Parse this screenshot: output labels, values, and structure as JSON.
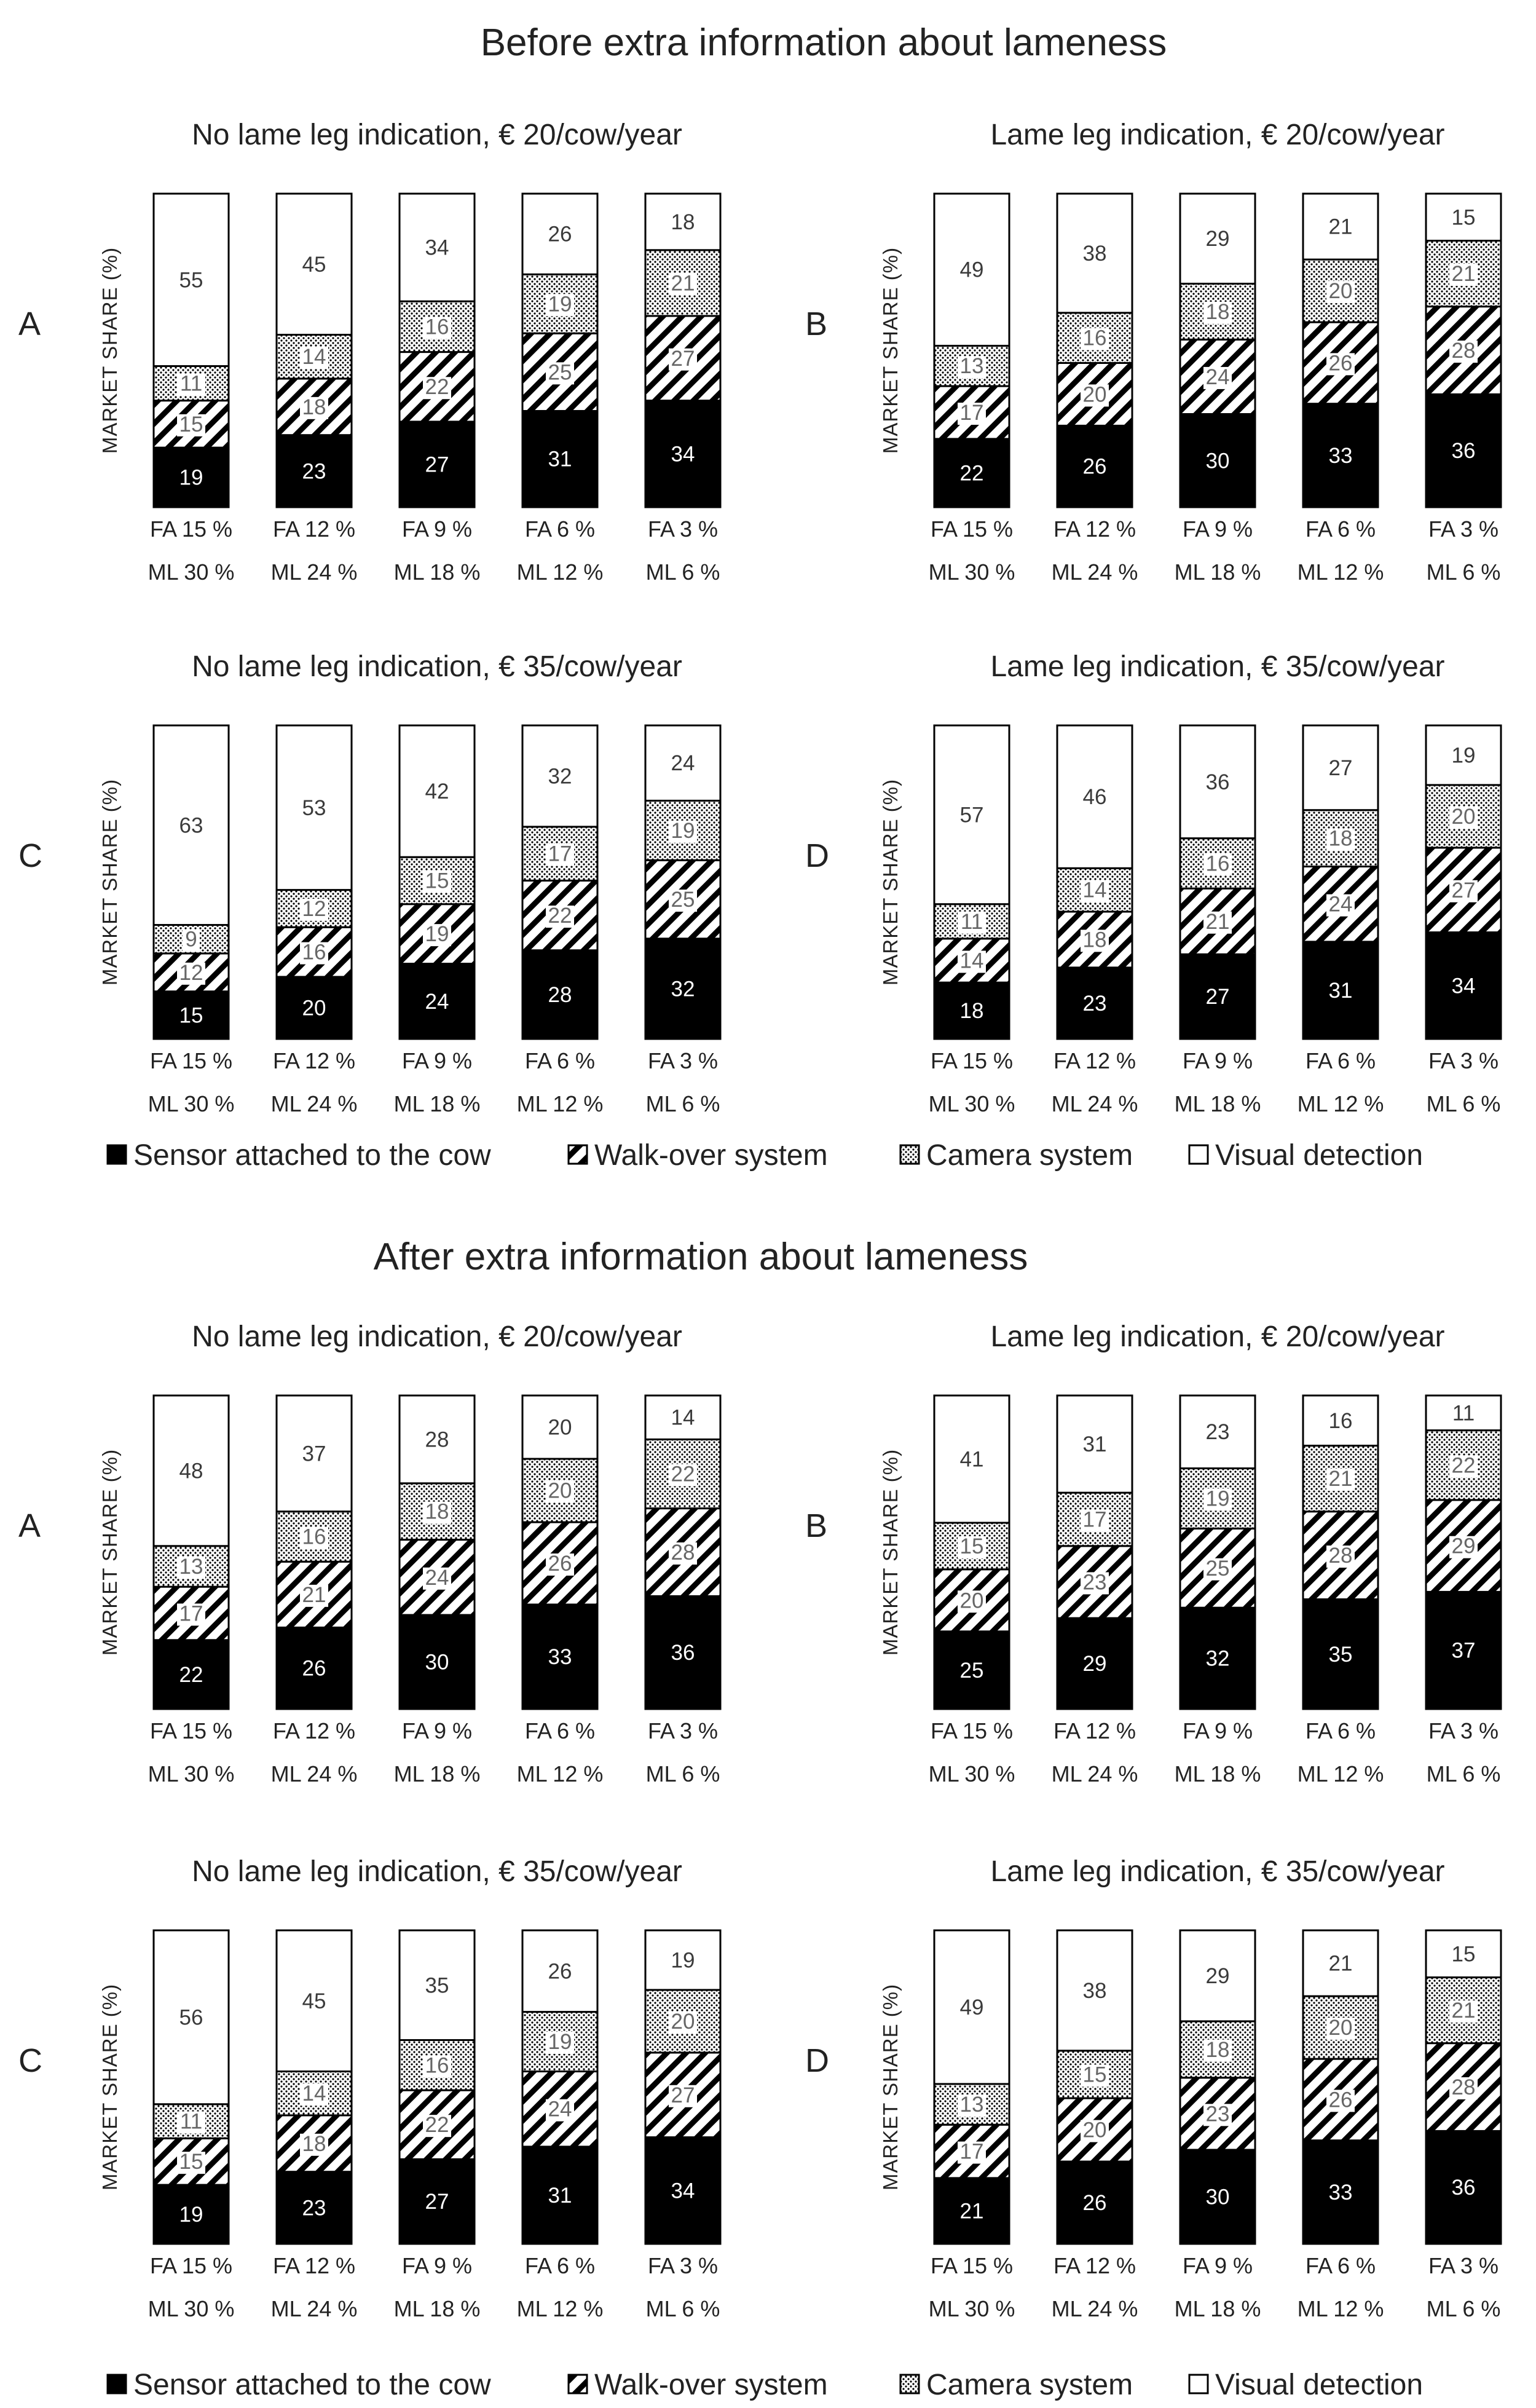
{
  "figure": {
    "section_before_title": "Before extra information about lameness",
    "section_after_title": "After extra information about lameness",
    "legend": [
      {
        "label": "Sensor attached to the cow",
        "pattern": "solid"
      },
      {
        "label": "Walk-over system",
        "pattern": "hatch"
      },
      {
        "label": "Camera system",
        "pattern": "dots"
      },
      {
        "label": "Visual detection",
        "pattern": "white"
      }
    ],
    "colors": {
      "sensor": "#000000",
      "stroke": "#000000",
      "background": "#ffffff"
    }
  },
  "chart_data": [
    {
      "type": "bar",
      "stacked": true,
      "section": "before",
      "panel": "A",
      "title": "No lame leg indication, € 20/cow/year",
      "ylabel": "MARKET SHARE (%)",
      "categories_fa": [
        "FA 15 %",
        "FA 12 %",
        "FA 9 %",
        "FA 6 %",
        "FA 3 %"
      ],
      "categories_ml": [
        "ML 30 %",
        "ML 24 %",
        "ML 18 %",
        "ML 12 %",
        "ML 6 %"
      ],
      "ylim": [
        0,
        100
      ],
      "series": [
        {
          "name": "Sensor attached to the cow",
          "values": [
            19,
            23,
            27,
            31,
            34
          ]
        },
        {
          "name": "Walk-over system",
          "values": [
            15,
            18,
            22,
            25,
            27
          ]
        },
        {
          "name": "Camera system",
          "values": [
            11,
            14,
            16,
            19,
            21
          ]
        },
        {
          "name": "Visual detection",
          "values": [
            55,
            45,
            34,
            26,
            18
          ]
        }
      ]
    },
    {
      "type": "bar",
      "stacked": true,
      "section": "before",
      "panel": "B",
      "title": "Lame leg indication, € 20/cow/year",
      "ylabel": "MARKET SHARE (%)",
      "categories_fa": [
        "FA 15 %",
        "FA 12 %",
        "FA 9 %",
        "FA 6 %",
        "FA 3 %"
      ],
      "categories_ml": [
        "ML 30 %",
        "ML 24 %",
        "ML 18 %",
        "ML 12 %",
        "ML 6 %"
      ],
      "ylim": [
        0,
        100
      ],
      "series": [
        {
          "name": "Sensor attached to the cow",
          "values": [
            22,
            26,
            30,
            33,
            36
          ]
        },
        {
          "name": "Walk-over system",
          "values": [
            17,
            20,
            24,
            26,
            28
          ]
        },
        {
          "name": "Camera system",
          "values": [
            13,
            16,
            18,
            20,
            21
          ]
        },
        {
          "name": "Visual detection",
          "values": [
            49,
            38,
            29,
            21,
            15
          ]
        }
      ]
    },
    {
      "type": "bar",
      "stacked": true,
      "section": "before",
      "panel": "C",
      "title": "No lame leg indication, € 35/cow/year",
      "ylabel": "MARKET SHARE (%)",
      "categories_fa": [
        "FA 15 %",
        "FA 12 %",
        "FA 9 %",
        "FA 6 %",
        "FA 3 %"
      ],
      "categories_ml": [
        "ML 30 %",
        "ML 24 %",
        "ML 18 %",
        "ML 12 %",
        "ML 6 %"
      ],
      "ylim": [
        0,
        100
      ],
      "series": [
        {
          "name": "Sensor attached to the cow",
          "values": [
            15,
            20,
            24,
            28,
            32
          ]
        },
        {
          "name": "Walk-over system",
          "values": [
            12,
            16,
            19,
            22,
            25
          ]
        },
        {
          "name": "Camera system",
          "values": [
            9,
            12,
            15,
            17,
            19
          ]
        },
        {
          "name": "Visual detection",
          "values": [
            63,
            53,
            42,
            32,
            24
          ]
        }
      ]
    },
    {
      "type": "bar",
      "stacked": true,
      "section": "before",
      "panel": "D",
      "title": "Lame leg indication, € 35/cow/year",
      "ylabel": "MARKET SHARE (%)",
      "categories_fa": [
        "FA 15 %",
        "FA 12 %",
        "FA 9 %",
        "FA 6 %",
        "FA 3 %"
      ],
      "categories_ml": [
        "ML 30 %",
        "ML 24 %",
        "ML 18 %",
        "ML 12 %",
        "ML 6 %"
      ],
      "ylim": [
        0,
        100
      ],
      "series": [
        {
          "name": "Sensor attached to the cow",
          "values": [
            18,
            23,
            27,
            31,
            34
          ]
        },
        {
          "name": "Walk-over system",
          "values": [
            14,
            18,
            21,
            24,
            27
          ]
        },
        {
          "name": "Camera system",
          "values": [
            11,
            14,
            16,
            18,
            20
          ]
        },
        {
          "name": "Visual detection",
          "values": [
            57,
            46,
            36,
            27,
            19
          ]
        }
      ]
    },
    {
      "type": "bar",
      "stacked": true,
      "section": "after",
      "panel": "A",
      "title": "No lame leg indication, € 20/cow/year",
      "ylabel": "MARKET SHARE (%)",
      "categories_fa": [
        "FA 15 %",
        "FA 12 %",
        "FA 9 %",
        "FA 6 %",
        "FA 3 %"
      ],
      "categories_ml": [
        "ML 30 %",
        "ML 24 %",
        "ML 18 %",
        "ML 12 %",
        "ML 6 %"
      ],
      "ylim": [
        0,
        100
      ],
      "series": [
        {
          "name": "Sensor attached to the cow",
          "values": [
            22,
            26,
            30,
            33,
            36
          ]
        },
        {
          "name": "Walk-over system",
          "values": [
            17,
            21,
            24,
            26,
            28
          ]
        },
        {
          "name": "Camera system",
          "values": [
            13,
            16,
            18,
            20,
            22
          ]
        },
        {
          "name": "Visual detection",
          "values": [
            48,
            37,
            28,
            20,
            14
          ]
        }
      ]
    },
    {
      "type": "bar",
      "stacked": true,
      "section": "after",
      "panel": "B",
      "title": "Lame leg indication, € 20/cow/year",
      "ylabel": "MARKET SHARE (%)",
      "categories_fa": [
        "FA 15 %",
        "FA 12 %",
        "FA 9 %",
        "FA 6 %",
        "FA 3 %"
      ],
      "categories_ml": [
        "ML 30 %",
        "ML 24 %",
        "ML 18 %",
        "ML 12 %",
        "ML 6 %"
      ],
      "ylim": [
        0,
        100
      ],
      "series": [
        {
          "name": "Sensor attached to the cow",
          "values": [
            25,
            29,
            32,
            35,
            37
          ]
        },
        {
          "name": "Walk-over system",
          "values": [
            20,
            23,
            25,
            28,
            29
          ]
        },
        {
          "name": "Camera system",
          "values": [
            15,
            17,
            19,
            21,
            22
          ]
        },
        {
          "name": "Visual detection",
          "values": [
            41,
            31,
            23,
            16,
            11
          ]
        }
      ]
    },
    {
      "type": "bar",
      "stacked": true,
      "section": "after",
      "panel": "C",
      "title": "No lame leg indication, € 35/cow/year",
      "ylabel": "MARKET SHARE (%)",
      "categories_fa": [
        "FA 15 %",
        "FA 12 %",
        "FA 9 %",
        "FA 6 %",
        "FA 3 %"
      ],
      "categories_ml": [
        "ML 30 %",
        "ML 24 %",
        "ML 18 %",
        "ML 12 %",
        "ML 6 %"
      ],
      "ylim": [
        0,
        100
      ],
      "series": [
        {
          "name": "Sensor attached to the cow",
          "values": [
            19,
            23,
            27,
            31,
            34
          ]
        },
        {
          "name": "Walk-over system",
          "values": [
            15,
            18,
            22,
            24,
            27
          ]
        },
        {
          "name": "Camera system",
          "values": [
            11,
            14,
            16,
            19,
            20
          ]
        },
        {
          "name": "Visual detection",
          "values": [
            56,
            45,
            35,
            26,
            19
          ]
        }
      ]
    },
    {
      "type": "bar",
      "stacked": true,
      "section": "after",
      "panel": "D",
      "title": "Lame leg indication, € 35/cow/year",
      "ylabel": "MARKET SHARE (%)",
      "categories_fa": [
        "FA 15 %",
        "FA 12 %",
        "FA 9 %",
        "FA 6 %",
        "FA 3 %"
      ],
      "categories_ml": [
        "ML 30 %",
        "ML 24 %",
        "ML 18 %",
        "ML 12 %",
        "ML 6 %"
      ],
      "ylim": [
        0,
        100
      ],
      "series": [
        {
          "name": "Sensor attached to the cow",
          "values": [
            21,
            26,
            30,
            33,
            36
          ]
        },
        {
          "name": "Walk-over system",
          "values": [
            17,
            20,
            23,
            26,
            28
          ]
        },
        {
          "name": "Camera system",
          "values": [
            13,
            15,
            18,
            20,
            21
          ]
        },
        {
          "name": "Visual detection",
          "values": [
            49,
            38,
            29,
            21,
            15
          ]
        }
      ]
    }
  ]
}
